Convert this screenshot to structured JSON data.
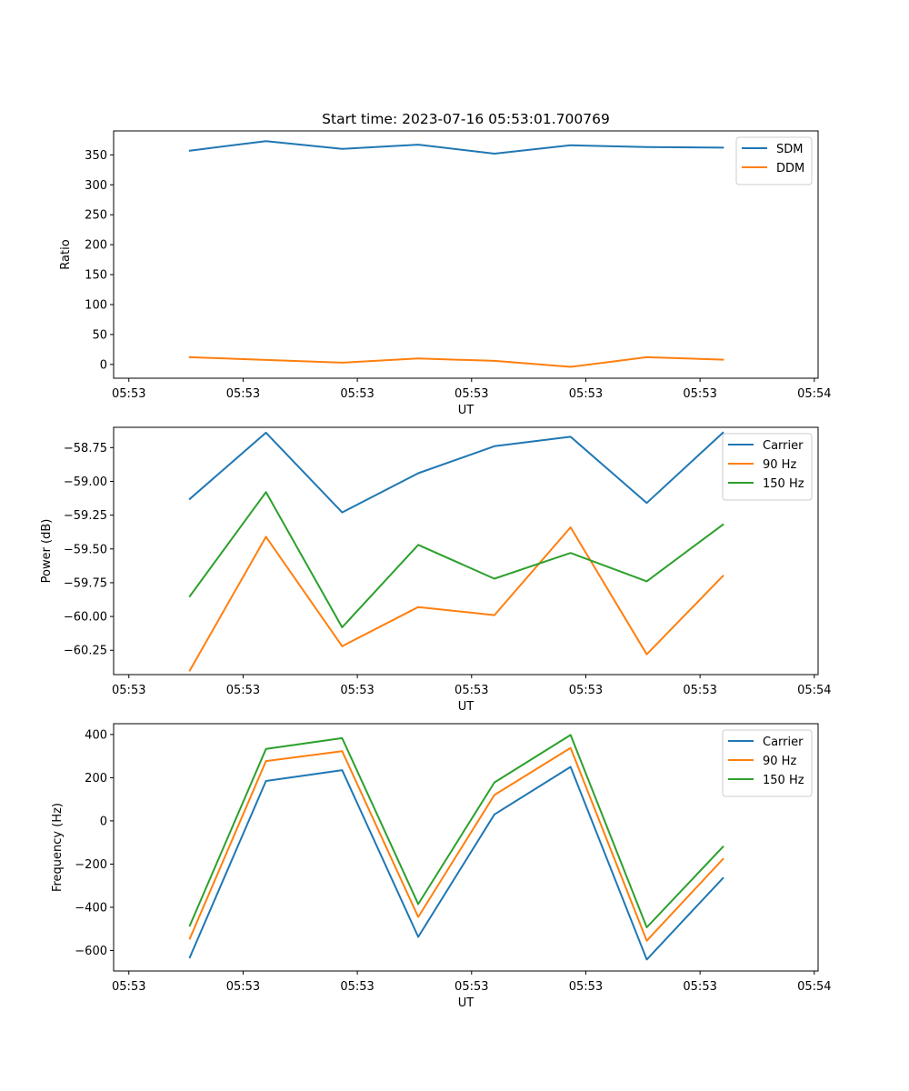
{
  "title": "Start time: 2023-07-16 05:53:01.700769",
  "chart_data": [
    {
      "type": "line",
      "name": "ratio",
      "xlabel": "UT",
      "ylabel": "Ratio",
      "x_tick_labels": [
        "05:53",
        "05:53",
        "05:53",
        "05:53",
        "05:53",
        "05:53",
        "05:54"
      ],
      "yticks": [
        0,
        50,
        100,
        150,
        200,
        250,
        300,
        350
      ],
      "ytick_labels": [
        "0",
        "50",
        "100",
        "150",
        "200",
        "250",
        "300",
        "350"
      ],
      "ylim": [
        -23,
        390
      ],
      "x_points": [
        1,
        2,
        3,
        4,
        5,
        6,
        7,
        8
      ],
      "xlim": [
        0,
        9.25
      ],
      "legend": "top-right",
      "series": [
        {
          "name": "SDM",
          "color": "#1f77b4",
          "values": [
            357,
            373,
            360,
            367,
            352,
            366,
            363,
            362
          ]
        },
        {
          "name": "DDM",
          "color": "#ff7f0e",
          "values": [
            12,
            7.5,
            3,
            10,
            6,
            -4,
            12,
            8
          ]
        }
      ]
    },
    {
      "type": "line",
      "name": "power",
      "xlabel": "UT",
      "ylabel": "Power (dB)",
      "x_tick_labels": [
        "05:53",
        "05:53",
        "05:53",
        "05:53",
        "05:53",
        "05:53",
        "05:54"
      ],
      "yticks": [
        -60.25,
        -60.0,
        -59.75,
        -59.5,
        -59.25,
        -59.0,
        -58.75
      ],
      "ytick_labels": [
        "−60.25",
        "−60.00",
        "−59.75",
        "−59.50",
        "−59.25",
        "−59.00",
        "−58.75"
      ],
      "ylim": [
        -60.43,
        -58.6
      ],
      "x_points": [
        1,
        2,
        3,
        4,
        5,
        6,
        7,
        8
      ],
      "xlim": [
        0,
        9.25
      ],
      "legend": "top-right",
      "series": [
        {
          "name": "Carrier",
          "color": "#1f77b4",
          "values": [
            -59.13,
            -58.64,
            -59.23,
            -58.94,
            -58.74,
            -58.67,
            -59.16,
            -58.64
          ]
        },
        {
          "name": "90 Hz",
          "color": "#ff7f0e",
          "values": [
            -60.4,
            -59.41,
            -60.22,
            -59.93,
            -59.99,
            -59.34,
            -60.28,
            -59.7
          ]
        },
        {
          "name": "150 Hz",
          "color": "#2ca02c",
          "values": [
            -59.85,
            -59.08,
            -60.08,
            -59.47,
            -59.72,
            -59.53,
            -59.74,
            -59.32
          ]
        }
      ]
    },
    {
      "type": "line",
      "name": "frequency",
      "xlabel": "UT",
      "ylabel": "Frequency (Hz)",
      "x_tick_labels": [
        "05:53",
        "05:53",
        "05:53",
        "05:53",
        "05:53",
        "05:53",
        "05:54"
      ],
      "yticks": [
        -600,
        -400,
        -200,
        0,
        200,
        400
      ],
      "ytick_labels": [
        "−600",
        "−400",
        "−200",
        "0",
        "200",
        "400"
      ],
      "ylim": [
        -695,
        450
      ],
      "x_points": [
        1,
        2,
        3,
        4,
        5,
        6,
        7,
        8
      ],
      "xlim": [
        0,
        9.25
      ],
      "legend": "top-right",
      "series": [
        {
          "name": "Carrier",
          "color": "#1f77b4",
          "values": [
            -632,
            185,
            235,
            -537,
            30,
            250,
            -642,
            -265
          ]
        },
        {
          "name": "90 Hz",
          "color": "#ff7f0e",
          "values": [
            -545,
            277,
            323,
            -445,
            120,
            338,
            -555,
            -177
          ]
        },
        {
          "name": "150 Hz",
          "color": "#2ca02c",
          "values": [
            -485,
            333,
            383,
            -385,
            178,
            398,
            -493,
            -120
          ]
        }
      ]
    }
  ]
}
